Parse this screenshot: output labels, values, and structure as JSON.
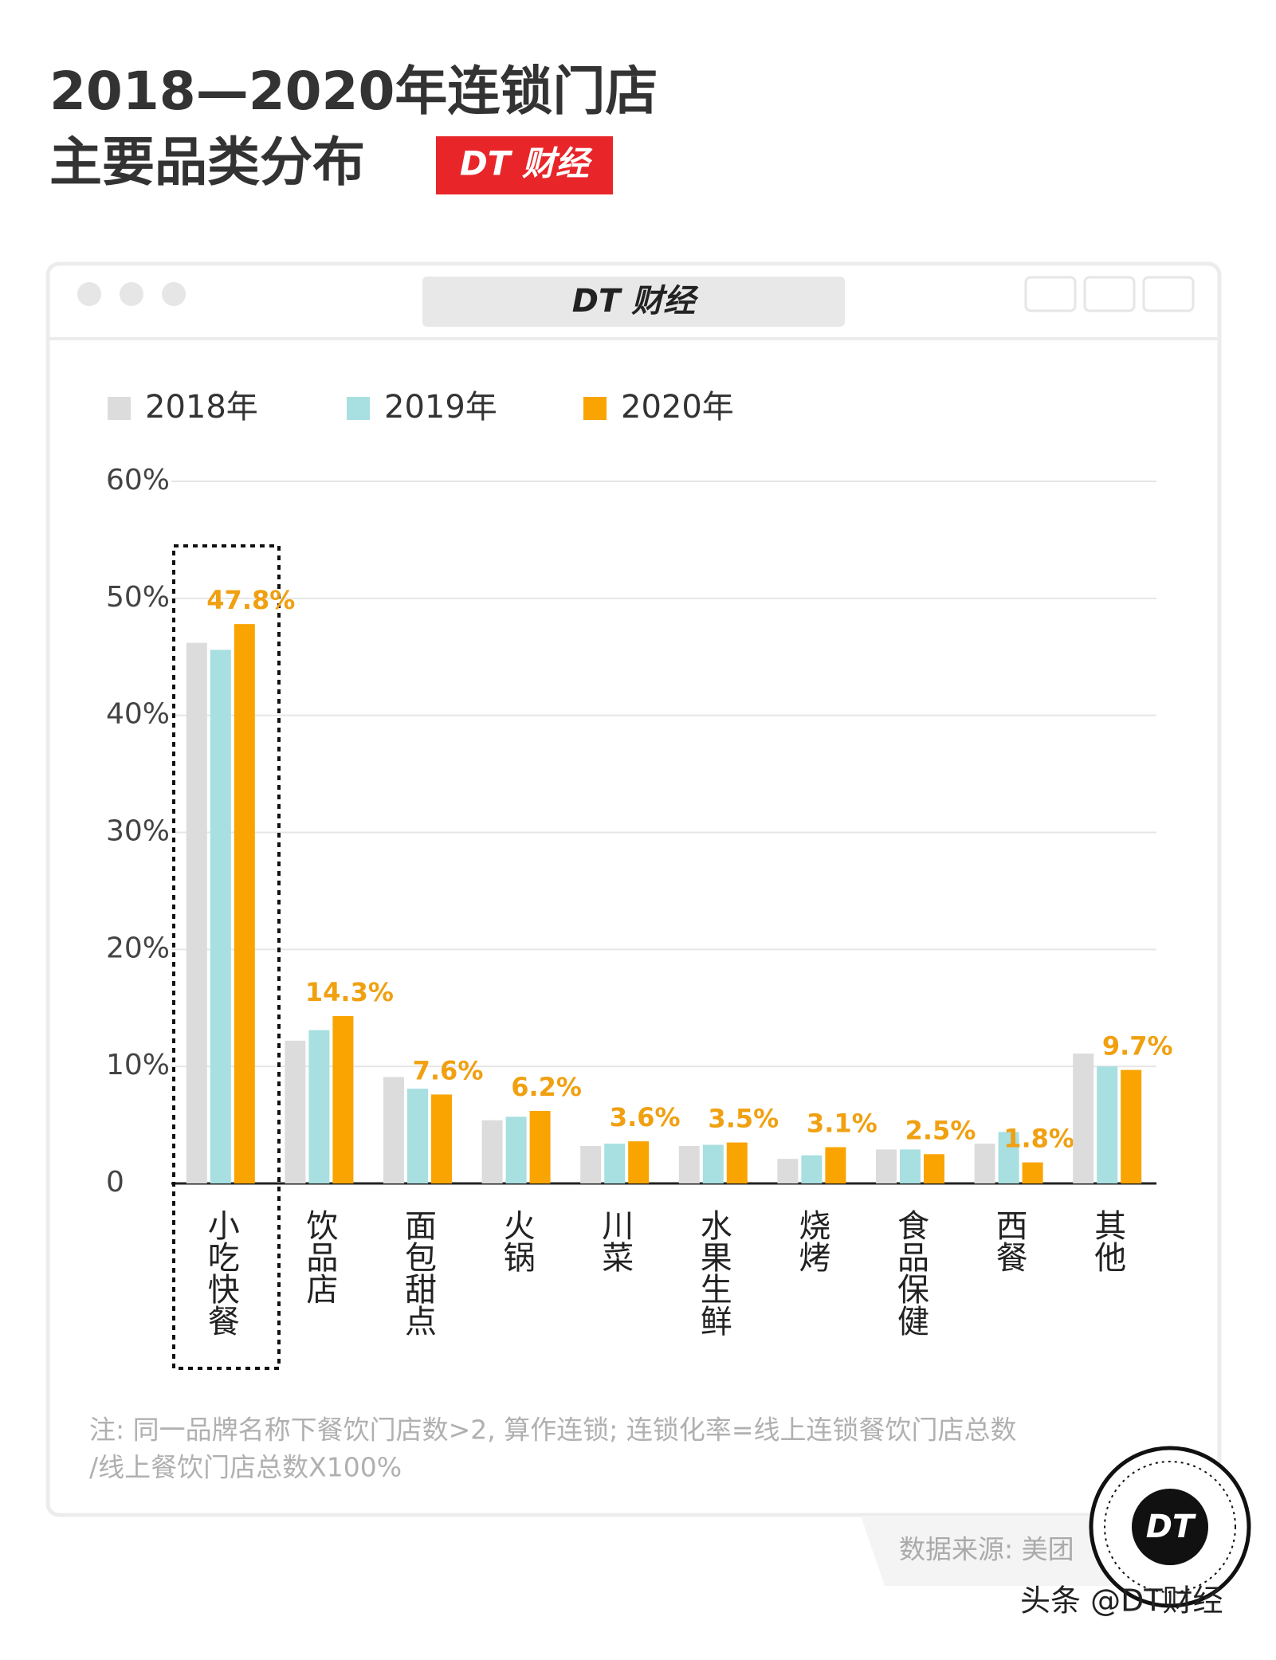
{
  "header": {
    "title_line1": "2018—2020年连锁门店",
    "title_line2": "主要品类分布",
    "badge": "DT 财经"
  },
  "window": {
    "title": "DT 财经"
  },
  "chart_data": {
    "type": "bar",
    "categories": [
      "小吃快餐",
      "饮品店",
      "面包甜点",
      "火锅",
      "川菜",
      "水果生鲜",
      "烧烤",
      "食品保健",
      "西餐",
      "其他"
    ],
    "series": [
      {
        "name": "2018年",
        "color": "#dcdcdc",
        "values": [
          46.2,
          12.2,
          9.1,
          5.4,
          3.2,
          3.2,
          2.1,
          2.9,
          3.4,
          11.1
        ]
      },
      {
        "name": "2019年",
        "color": "#a8dfe0",
        "values": [
          45.6,
          13.1,
          8.1,
          5.7,
          3.4,
          3.3,
          2.4,
          2.9,
          4.4,
          10.0
        ]
      },
      {
        "name": "2020年",
        "color": "#f9a400",
        "values": [
          47.8,
          14.3,
          7.6,
          6.2,
          3.6,
          3.5,
          3.1,
          2.5,
          1.8,
          9.7
        ],
        "value_labels": [
          "47.8%",
          "14.3%",
          "7.6%",
          "6.2%",
          "3.6%",
          "3.5%",
          "3.1%",
          "2.5%",
          "1.8%",
          "9.7%"
        ]
      }
    ],
    "ylim": [
      0,
      60
    ],
    "yticks": [
      0,
      {
        "value": 10,
        "label": "10%"
      },
      {
        "value": 20,
        "label": "20%"
      },
      {
        "value": 30,
        "label": "30%"
      },
      {
        "value": 40,
        "label": "40%"
      },
      {
        "value": 50,
        "label": "50%"
      },
      {
        "value": 60,
        "label": "60%"
      }
    ],
    "grid": true
  },
  "note": {
    "line1": "注: 同一品牌名称下餐饮门店数>2, 算作连锁; 连锁化率=线上连锁餐饮门店总数",
    "line2": "/线上餐饮门店总数X100%"
  },
  "source": "数据来源: 美团",
  "logo_text": "DT",
  "watermark": "头条 @DT财经"
}
